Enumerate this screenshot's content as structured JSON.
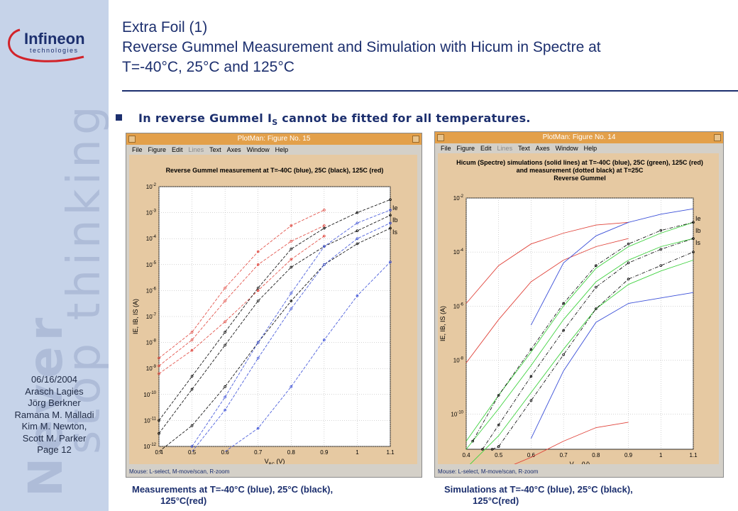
{
  "logo": {
    "brand": "Infineon",
    "sub": "technologies"
  },
  "watermark": {
    "line1": "Never",
    "line2": "stop thinking"
  },
  "sidebar_info": [
    "06/16/2004",
    "Arasch Lagies",
    "Jörg Berkner",
    "Ramana M. Malladi",
    "Kim M. Newton,",
    "Scott M. Parker",
    "Page 12"
  ],
  "header": {
    "line1": "Extra Foil (1)",
    "line2": "Reverse Gummel Measurement and Simulation with Hicum in Spectre at",
    "line3": "T=-40°C, 25°C and 125°C"
  },
  "bullet": {
    "text_before": "In reverse Gummel I",
    "sub": "S",
    "text_after": " cannot be fitted for all temperatures."
  },
  "menus": [
    "File",
    "Figure",
    "Edit",
    "Lines",
    "Text",
    "Axes",
    "Window",
    "Help"
  ],
  "status_text": "Mouse: L-select, M-move/scan, R-zoom",
  "colors": {
    "blue": "#3a4fd8",
    "black": "#000000",
    "red": "#e0433a",
    "green": "#3fd23f",
    "accent": "#1c2f6e"
  },
  "captions": {
    "left": [
      "Measurements at T=-40°C (blue), 25°C (black),",
      "125°C(red)"
    ],
    "right": [
      "Simulations at T=-40°C (blue), 25°C (black),",
      "125°C(red)"
    ]
  },
  "chart_data": [
    {
      "type": "line",
      "window_title": "PlotMan: Figure No. 15",
      "title_lines": [
        "Reverse Gummel measurement at T=-40C (blue), 25C (black), 125C (red)"
      ],
      "xlabel": "V_BC (V)",
      "ylabel": "I_E, I_B, I_S (A)",
      "xlim": [
        0.4,
        1.1
      ],
      "ylim_log10": [
        -12,
        -2
      ],
      "log_y": true,
      "x_ticks": [
        0.4,
        0.5,
        0.6,
        0.7,
        0.8,
        0.9,
        1,
        1.1
      ],
      "y_tick_exponents": [
        -12,
        -11,
        -10,
        -9,
        -8,
        -7,
        -6,
        -5,
        -4,
        -3,
        -2
      ],
      "curve_labels": [
        "Ie",
        "Ib",
        "Is"
      ],
      "series": [
        {
          "color": "red",
          "style": "dashed-markers",
          "x": [
            0.4,
            0.5,
            0.6,
            0.7,
            0.8,
            0.9
          ],
          "log10_y": [
            -8.6,
            -7.6,
            -5.9,
            -4.5,
            -3.5,
            -2.9
          ]
        },
        {
          "color": "red",
          "style": "dashed-markers",
          "x": [
            0.4,
            0.5,
            0.6,
            0.7,
            0.8,
            0.9
          ],
          "log10_y": [
            -8.9,
            -7.9,
            -6.4,
            -5.0,
            -4.1,
            -3.5
          ]
        },
        {
          "color": "red",
          "style": "dashed-markers",
          "x": [
            0.4,
            0.5,
            0.6,
            0.7,
            0.8,
            0.9
          ],
          "log10_y": [
            -9.2,
            -8.3,
            -7.2,
            -6.0,
            -4.8,
            -3.9
          ]
        },
        {
          "color": "black",
          "style": "dashed-markers",
          "x": [
            0.4,
            0.5,
            0.6,
            0.7,
            0.8,
            0.9,
            1.0,
            1.1
          ],
          "log10_y": [
            -11.0,
            -9.3,
            -7.6,
            -5.9,
            -4.4,
            -3.6,
            -3.0,
            -2.5
          ]
        },
        {
          "color": "black",
          "style": "dashed-markers",
          "x": [
            0.4,
            0.5,
            0.6,
            0.7,
            0.8,
            0.9,
            1.0,
            1.1
          ],
          "log10_y": [
            -11.5,
            -9.8,
            -8.1,
            -6.4,
            -5.1,
            -4.3,
            -3.7,
            -3.1
          ]
        },
        {
          "color": "black",
          "style": "dashed-markers",
          "x": [
            0.4,
            0.5,
            0.6,
            0.7,
            0.8,
            0.9,
            1.0,
            1.1
          ],
          "log10_y": [
            -12.2,
            -11.2,
            -9.7,
            -8.0,
            -6.4,
            -5.0,
            -4.2,
            -3.6
          ]
        },
        {
          "color": "blue",
          "style": "dashed-markers",
          "x": [
            0.5,
            0.6,
            0.7,
            0.8,
            0.9,
            1.0,
            1.1
          ],
          "log10_y": [
            -12.0,
            -10.1,
            -8.0,
            -6.1,
            -4.3,
            -3.4,
            -2.9
          ]
        },
        {
          "color": "blue",
          "style": "dashed-markers",
          "x": [
            0.5,
            0.6,
            0.7,
            0.8,
            0.9,
            1.0,
            1.1
          ],
          "log10_y": [
            -12.2,
            -10.6,
            -8.6,
            -6.7,
            -5.0,
            -4.0,
            -3.4
          ]
        },
        {
          "color": "blue",
          "style": "dashed-markers",
          "x": [
            0.6,
            0.7,
            0.8,
            0.9,
            1.0,
            1.1
          ],
          "log10_y": [
            -12.2,
            -11.3,
            -9.7,
            -7.9,
            -6.2,
            -4.9
          ]
        }
      ]
    },
    {
      "type": "line",
      "window_title": "PlotMan: Figure No. 14",
      "title_lines": [
        "Hicum (Spectre) simulations (solid lines) at T=-40C (blue), 25C (green), 125C (red)",
        "and measurement (dotted black) at T=25C",
        "Reverse Gummel"
      ],
      "xlabel": "V_BC (V)",
      "ylabel": "I_E, I_B, I_S (A)",
      "xlim": [
        0.4,
        1.1
      ],
      "ylim_log10": [
        -11.3,
        -2
      ],
      "log_y": true,
      "x_ticks": [
        0.4,
        0.5,
        0.6,
        0.7,
        0.8,
        0.9,
        1,
        1.1
      ],
      "y_tick_exponents": [
        -10,
        -8,
        -6,
        -4,
        -2
      ],
      "curve_labels": [
        "Ie",
        "Ib",
        "Is"
      ],
      "series": [
        {
          "color": "red",
          "style": "solid",
          "x": [
            0.4,
            0.5,
            0.6,
            0.7,
            0.8,
            0.9
          ],
          "log10_y": [
            -5.9,
            -4.5,
            -3.7,
            -3.3,
            -3.0,
            -2.9
          ]
        },
        {
          "color": "red",
          "style": "solid",
          "x": [
            0.4,
            0.5,
            0.6,
            0.7,
            0.8,
            0.9
          ],
          "log10_y": [
            -8.1,
            -6.5,
            -5.1,
            -4.3,
            -3.8,
            -3.5
          ]
        },
        {
          "color": "red",
          "style": "solid",
          "x": [
            0.52,
            0.6,
            0.7,
            0.8,
            0.9
          ],
          "log10_y": [
            -12.0,
            -11.6,
            -11.0,
            -10.5,
            -10.3
          ]
        },
        {
          "color": "green",
          "style": "solid",
          "x": [
            0.4,
            0.5,
            0.6,
            0.7,
            0.8,
            0.9,
            1.0,
            1.1
          ],
          "log10_y": [
            -11.0,
            -9.3,
            -7.7,
            -6.0,
            -4.6,
            -3.8,
            -3.3,
            -2.9
          ]
        },
        {
          "color": "green",
          "style": "solid",
          "x": [
            0.4,
            0.5,
            0.6,
            0.7,
            0.8,
            0.9,
            1.0,
            1.1
          ],
          "log10_y": [
            -11.3,
            -9.8,
            -8.2,
            -6.5,
            -5.1,
            -4.3,
            -3.8,
            -3.5
          ]
        },
        {
          "color": "green",
          "style": "solid",
          "x": [
            0.4,
            0.5,
            0.6,
            0.7,
            0.8,
            0.9,
            1.0,
            1.1
          ],
          "log10_y": [
            -12.0,
            -10.8,
            -9.2,
            -7.6,
            -6.1,
            -5.2,
            -4.7,
            -4.3
          ]
        },
        {
          "color": "black",
          "style": "dash-dot-markers",
          "x": [
            0.42,
            0.5,
            0.6,
            0.7,
            0.8,
            0.9,
            1.0,
            1.1
          ],
          "log10_y": [
            -11.0,
            -9.3,
            -7.6,
            -5.9,
            -4.5,
            -3.7,
            -3.2,
            -2.9
          ]
        },
        {
          "color": "black",
          "style": "dash-dot-markers",
          "x": [
            0.45,
            0.5,
            0.6,
            0.7,
            0.8,
            0.9,
            1.0,
            1.1
          ],
          "log10_y": [
            -11.3,
            -10.4,
            -8.6,
            -6.9,
            -5.3,
            -4.4,
            -3.9,
            -3.5
          ]
        },
        {
          "color": "black",
          "style": "dash-dot-markers",
          "x": [
            0.48,
            0.5,
            0.6,
            0.7,
            0.8,
            0.9,
            1.0,
            1.1
          ],
          "log10_y": [
            -11.3,
            -11.2,
            -9.5,
            -7.8,
            -6.1,
            -5.0,
            -4.5,
            -4.0
          ]
        },
        {
          "color": "blue",
          "style": "solid",
          "x": [
            0.6,
            0.7,
            0.8,
            0.9,
            1.0,
            1.1
          ],
          "log10_y": [
            -6.7,
            -4.4,
            -3.4,
            -2.9,
            -2.6,
            -2.4
          ]
        },
        {
          "color": "blue",
          "style": "solid",
          "x": [
            0.6,
            0.7,
            0.8,
            0.9,
            1.0,
            1.1
          ],
          "log10_y": [
            -10.9,
            -8.4,
            -6.6,
            -5.9,
            -5.7,
            -5.5
          ]
        }
      ]
    }
  ]
}
